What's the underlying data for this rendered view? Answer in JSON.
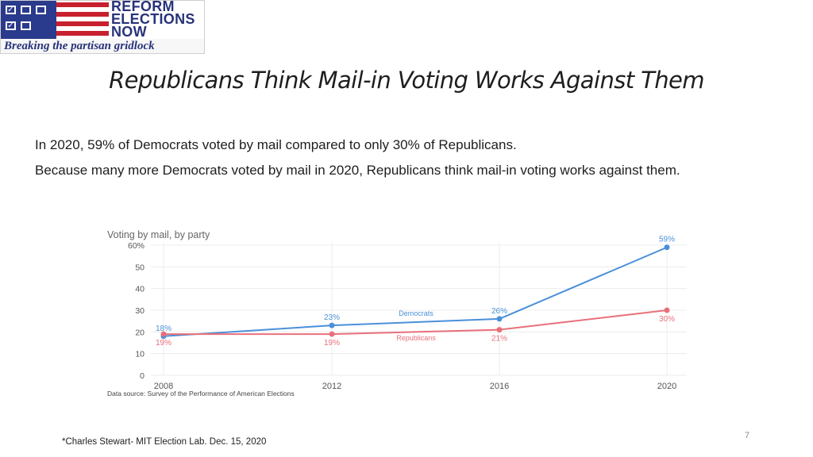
{
  "logo": {
    "line1": "REFORM",
    "line2": "ELECTIONS",
    "line3": "NOW",
    "tagline": "Breaking the partisan gridlock",
    "colors": {
      "blue": "#2a3a8c",
      "red": "#c8202f",
      "text": "#27337a"
    }
  },
  "slide": {
    "title": "Republicans Think Mail-in Voting Works Against Them",
    "line1": "In 2020, 59% of Democrats voted by mail compared to only 30% of Republicans.",
    "line2": "Because many more Democrats voted by mail in 2020, Republicans think mail-in voting works against them.",
    "footnote": "*Charles Stewart- MIT Election Lab. Dec. 15, 2020",
    "page_number": "7"
  },
  "chart_data": {
    "type": "line",
    "title": "Voting by mail, by party",
    "source": "Data source: Survey of the Performance of American Elections",
    "categories": [
      "2008",
      "2012",
      "2016",
      "2020"
    ],
    "y_ticks": [
      "60%",
      "50",
      "40",
      "30",
      "20",
      "10",
      "0"
    ],
    "ylim": [
      0,
      60
    ],
    "grid": true,
    "series": [
      {
        "name": "Democrats",
        "color": "#4a90d9",
        "values": [
          18,
          23,
          26,
          59
        ],
        "labels": [
          "18%",
          "23%",
          "26%",
          "59%"
        ]
      },
      {
        "name": "Republicans",
        "color": "#e8707a",
        "values": [
          19,
          19,
          21,
          30
        ],
        "labels": [
          "19%",
          "19%",
          "21%",
          "30%"
        ]
      }
    ]
  }
}
